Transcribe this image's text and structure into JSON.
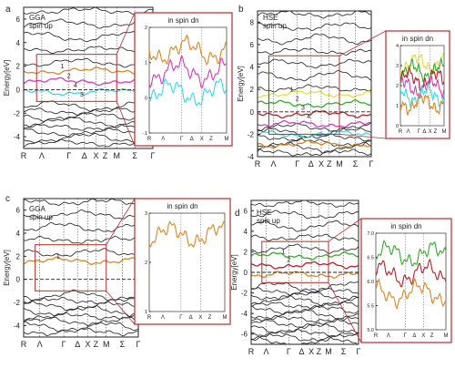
{
  "colors": {
    "frame": "#222222",
    "callout": "#b03030",
    "fermi": "#222222",
    "black_band": "#1a1a1a",
    "orange": "#d4882a",
    "red": "#b0242a",
    "magenta": "#d23fb4",
    "cyan": "#3fd6e4",
    "green": "#3aa832",
    "yellow": "#e6dc4a"
  },
  "kpath": [
    "R",
    "Λ",
    "Γ",
    "Δ",
    "X",
    "Z",
    "M",
    "Σ",
    "Γ"
  ],
  "energy_label": "Energy[eV]",
  "panels": [
    {
      "letter": "a",
      "method": "GGA",
      "spin": "spin up",
      "yticks": [
        "6",
        "4",
        "2",
        "0",
        "-2",
        "-4"
      ],
      "band_markers": [
        "1",
        "2",
        "4",
        "3"
      ],
      "inset": {
        "title": "in spin dn",
        "yticks": [
          "2",
          "1",
          "0",
          "-1"
        ],
        "xticks": [
          "R",
          "Λ",
          "Γ",
          "Δ",
          "X",
          "Z",
          "M"
        ]
      }
    },
    {
      "letter": "b",
      "method": "HSE",
      "spin": "spin up",
      "yticks": [
        "8",
        "6",
        "4",
        "2",
        "0",
        "-2",
        "-4"
      ],
      "band_markers": [
        "1",
        "2",
        "3",
        "4"
      ],
      "inset": {
        "title": "in spin dn",
        "yticks": [
          "4",
          "3",
          "2",
          "1",
          "0"
        ],
        "xticks": [
          "R",
          "Λ",
          "Γ",
          "Δ",
          "X",
          "Z",
          "M"
        ]
      }
    },
    {
      "letter": "c",
      "method": "GGA",
      "spin": "spin up",
      "yticks": [
        "6",
        "4",
        "2",
        "0",
        "-2",
        "-4"
      ],
      "band_markers": [
        "1"
      ],
      "inset": {
        "title": "in spin dn",
        "yticks": [
          "3",
          "2",
          "1"
        ],
        "xticks": [
          "R",
          "Λ",
          "Γ",
          "Δ",
          "X",
          "Z",
          "M"
        ]
      }
    },
    {
      "letter": "d",
      "method": "HSE",
      "spin": "spin up",
      "yticks": [
        "6",
        "4",
        "2",
        "0",
        "-2",
        "-4",
        "-6"
      ],
      "band_markers": [
        "1",
        "2"
      ],
      "inset": {
        "title": "in spin dn",
        "yticks": [
          "7.0",
          "6.5",
          "6.0",
          "5.5",
          "5.0"
        ],
        "xticks": [
          "R",
          "Λ",
          "Γ",
          "Δ",
          "X",
          "Z",
          "M"
        ]
      }
    }
  ]
}
